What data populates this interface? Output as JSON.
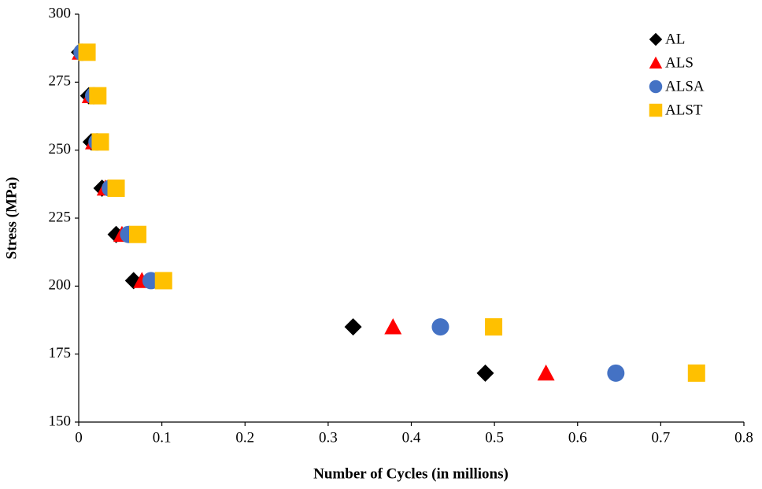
{
  "chart_data": {
    "type": "scatter",
    "xlabel": "Number of Cycles (in millions)",
    "ylabel": "Stress (MPa)",
    "xlim": [
      0,
      0.8
    ],
    "xticks": [
      0,
      0.1,
      0.2,
      0.3,
      0.4,
      0.5,
      0.6,
      0.7,
      0.8
    ],
    "ylim": [
      150,
      300
    ],
    "yticks": [
      150,
      175,
      200,
      225,
      250,
      275,
      300
    ],
    "legend": "upper right",
    "series": [
      {
        "name": "AL",
        "color": "#000000",
        "marker": "diamond",
        "x": [
          0.001,
          0.012,
          0.015,
          0.028,
          0.045,
          0.066,
          0.33,
          0.489
        ],
        "values": [
          286,
          270,
          253,
          236,
          219,
          202,
          185,
          168
        ]
      },
      {
        "name": "ALS",
        "color": "#ff0000",
        "marker": "triangle",
        "x": [
          0.002,
          0.014,
          0.018,
          0.032,
          0.052,
          0.076,
          0.378,
          0.562
        ],
        "values": [
          286,
          270,
          253,
          236,
          219,
          202,
          185,
          168
        ]
      },
      {
        "name": "ALSA",
        "color": "#4472c4",
        "marker": "circle",
        "x": [
          0.004,
          0.018,
          0.022,
          0.038,
          0.06,
          0.087,
          0.435,
          0.646
        ],
        "values": [
          286,
          270,
          253,
          236,
          219,
          202,
          185,
          168
        ]
      },
      {
        "name": "ALST",
        "color": "#ffc000",
        "marker": "square",
        "x": [
          0.01,
          0.023,
          0.026,
          0.045,
          0.071,
          0.102,
          0.499,
          0.743
        ],
        "values": [
          286,
          270,
          253,
          236,
          219,
          202,
          185,
          168
        ]
      }
    ]
  }
}
